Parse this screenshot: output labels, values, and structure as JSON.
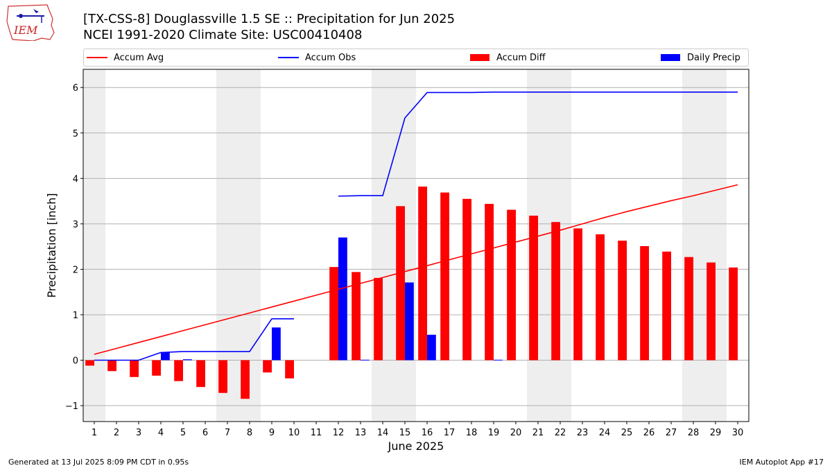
{
  "header": {
    "title_line1": "[TX-CSS-8] Douglassville 1.5 SE :: Precipitation for Jun 2025",
    "title_line2": "NCEI 1991-2020 Climate Site: USC00410408",
    "logo_text": "IEM"
  },
  "footer": {
    "left": "Generated at 13 Jul 2025 8:09 PM CDT in 0.95s",
    "right": "IEM Autoplot App #17"
  },
  "colors": {
    "avg": "#ff0000",
    "obs": "#0000ff",
    "diff": "#ff0000",
    "daily": "#0000ff",
    "weekend_shade": "#eeeeee",
    "grid": "#b0b0b0"
  },
  "chart_data": {
    "type": "bar",
    "xlabel": "June 2025",
    "ylabel": "Precipitation [inch]",
    "xlim": [
      0.5,
      30.5
    ],
    "ylim": [
      -1.35,
      6.4
    ],
    "yticks": [
      -1,
      0,
      1,
      2,
      3,
      4,
      5,
      6
    ],
    "ytick_labels": [
      "−1",
      "0",
      "1",
      "2",
      "3",
      "4",
      "5",
      "6"
    ],
    "days": [
      1,
      2,
      3,
      4,
      5,
      6,
      7,
      8,
      9,
      10,
      11,
      12,
      13,
      14,
      15,
      16,
      17,
      18,
      19,
      20,
      21,
      22,
      23,
      24,
      25,
      26,
      27,
      28,
      29,
      30
    ],
    "weekend_shading": [
      [
        0.5,
        1.5
      ],
      [
        6.5,
        8.5
      ],
      [
        13.5,
        15.5
      ],
      [
        20.5,
        22.5
      ],
      [
        27.5,
        29.5
      ]
    ],
    "grid": "horizontal",
    "legend_position": "top",
    "series": [
      {
        "name": "Accum Avg",
        "kind": "line",
        "values": [
          0.13,
          0.26,
          0.39,
          0.52,
          0.65,
          0.78,
          0.91,
          1.04,
          1.17,
          1.3,
          1.43,
          1.56,
          1.69,
          1.82,
          1.95,
          2.08,
          2.21,
          2.34,
          2.47,
          2.6,
          2.73,
          2.86,
          3.0,
          3.14,
          3.27,
          3.39,
          3.51,
          3.62,
          3.74,
          3.86
        ]
      },
      {
        "name": "Accum Obs",
        "kind": "line",
        "values": [
          0.0,
          0.0,
          0.0,
          0.17,
          0.19,
          0.19,
          0.19,
          0.19,
          0.91,
          0.91,
          null,
          3.61,
          3.62,
          3.62,
          5.33,
          5.89,
          5.89,
          5.89,
          5.9,
          5.9,
          5.9,
          5.9,
          5.9,
          5.9,
          5.9,
          5.9,
          5.9,
          5.9,
          5.9,
          5.9
        ]
      },
      {
        "name": "Accum Diff",
        "kind": "bar",
        "values": [
          -0.12,
          -0.24,
          -0.37,
          -0.34,
          -0.46,
          -0.59,
          -0.72,
          -0.85,
          -0.27,
          -0.4,
          null,
          2.05,
          1.94,
          1.81,
          3.39,
          3.82,
          3.69,
          3.55,
          3.44,
          3.31,
          3.18,
          3.04,
          2.9,
          2.77,
          2.63,
          2.51,
          2.39,
          2.27,
          2.15,
          2.04
        ]
      },
      {
        "name": "Daily Precip",
        "kind": "bar",
        "values": [
          0.0,
          0.0,
          0.0,
          0.17,
          0.02,
          0.0,
          0.0,
          0.0,
          0.72,
          0.0,
          null,
          2.7,
          0.01,
          0.0,
          1.71,
          0.56,
          0.0,
          0.0,
          0.01,
          0.0,
          0.0,
          0.0,
          0.0,
          0.0,
          0.0,
          0.0,
          0.0,
          0.0,
          0.0,
          0.0
        ]
      }
    ]
  }
}
